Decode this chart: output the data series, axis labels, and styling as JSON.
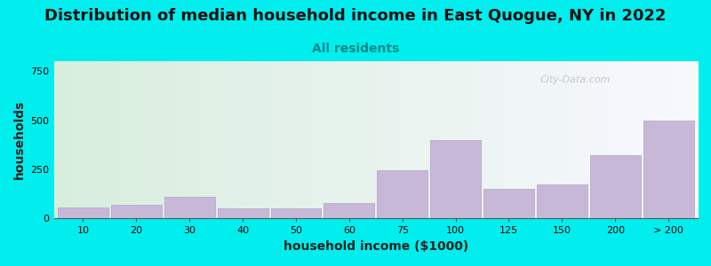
{
  "title": "Distribution of median household income in East Quogue, NY in 2022",
  "subtitle": "All residents",
  "xlabel": "household income ($1000)",
  "ylabel": "households",
  "background_color": "#00EEEE",
  "bar_color": "#c8b8d8",
  "bar_edge_color": "#b0a0c8",
  "categories": [
    "10",
    "20",
    "30",
    "40",
    "50",
    "60",
    "75",
    "100",
    "125",
    "150",
    "200",
    "> 200"
  ],
  "values": [
    55,
    70,
    110,
    50,
    50,
    80,
    245,
    400,
    150,
    175,
    320,
    500
  ],
  "ylim": [
    0,
    800
  ],
  "yticks": [
    0,
    250,
    500,
    750
  ],
  "title_fontsize": 13,
  "subtitle_fontsize": 10,
  "axis_label_fontsize": 10,
  "tick_fontsize": 8,
  "grad_left": "#d8eedd",
  "grad_right": "#f8f8ff",
  "watermark_text": "City-Data.com"
}
